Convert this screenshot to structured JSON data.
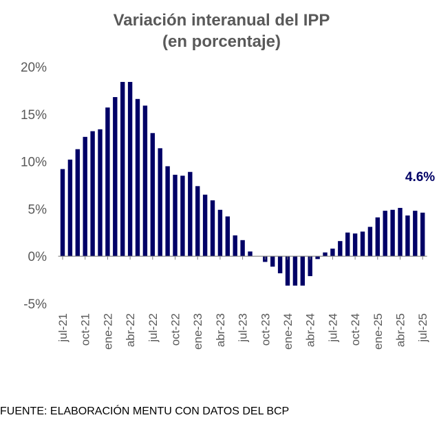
{
  "chart_data": {
    "type": "bar",
    "title": [
      "Variación interanual del IPP",
      "(en porcentaje)"
    ],
    "xlabel": "",
    "ylabel": "",
    "ylim": [
      -5,
      20
    ],
    "yticks": [
      "20%",
      "15%",
      "10%",
      "5%",
      "0%",
      "-5%"
    ],
    "ytick_values": [
      20,
      15,
      10,
      5,
      0,
      -5
    ],
    "grid": false,
    "bar_color": "#000066",
    "axis_color": "#7f7f7f",
    "categories": [
      "jul-21",
      "ago-21",
      "sep-21",
      "oct-21",
      "nov-21",
      "dic-21",
      "ene-22",
      "feb-22",
      "mar-22",
      "abr-22",
      "may-22",
      "jun-22",
      "jul-22",
      "ago-22",
      "sep-22",
      "oct-22",
      "nov-22",
      "dic-22",
      "ene-23",
      "feb-23",
      "mar-23",
      "abr-23",
      "may-23",
      "jun-23",
      "jul-23",
      "ago-23",
      "sep-23",
      "oct-23",
      "nov-23",
      "dic-23",
      "ene-24",
      "feb-24",
      "mar-24",
      "abr-24",
      "may-24",
      "jun-24",
      "jul-24",
      "ago-24",
      "sep-24",
      "oct-24",
      "nov-24",
      "dic-24",
      "ene-25",
      "feb-25",
      "mar-25",
      "abr-25",
      "may-25",
      "jun-25",
      "jul-25"
    ],
    "tick_labels": [
      "jul-21",
      "oct-21",
      "ene-22",
      "abr-22",
      "jul-22",
      "oct-22",
      "ene-23",
      "abr-23",
      "jul-23",
      "oct-23",
      "ene-24",
      "abr-24",
      "jul-24",
      "oct-24",
      "ene-25",
      "abr-25",
      "jul-25"
    ],
    "values": [
      9.2,
      10.2,
      11.3,
      12.6,
      13.2,
      13.4,
      15.7,
      16.8,
      18.4,
      18.4,
      16.6,
      15.9,
      13.0,
      11.4,
      9.5,
      8.6,
      8.5,
      8.9,
      7.4,
      6.5,
      5.9,
      4.9,
      4.2,
      2.2,
      1.7,
      0.5,
      0.0,
      -0.6,
      -1.1,
      -1.8,
      -3.1,
      -3.1,
      -3.1,
      -2.1,
      -0.3,
      0.4,
      0.8,
      1.6,
      2.5,
      2.4,
      2.6,
      3.1,
      4.1,
      4.8,
      4.9,
      5.1,
      4.3,
      4.8,
      4.6
    ],
    "annotations": [
      {
        "text": "4.6%",
        "category": "jul-25",
        "color": "#000066"
      }
    ]
  },
  "footer": {
    "source": "FUENTE: ELABORACIÓN MENTU CON DATOS DEL BCP"
  }
}
